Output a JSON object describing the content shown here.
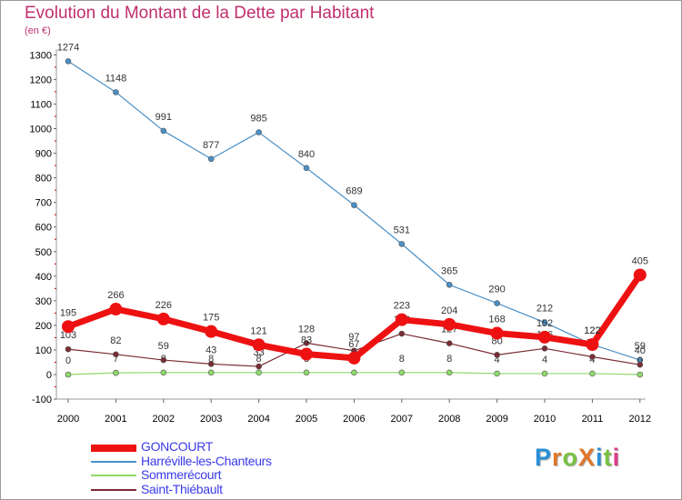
{
  "title": "Evolution du Montant de la Dette par Habitant",
  "unit": "(en €)",
  "logo": "ProXiti",
  "chart_data": {
    "type": "line",
    "title": "Evolution du Montant de la Dette par Habitant",
    "ylabel": "(en €)",
    "xlabel": "",
    "x": [
      "2000",
      "2001",
      "2002",
      "2003",
      "2004",
      "2005",
      "2006",
      "2007",
      "2008",
      "2009",
      "2010",
      "2011",
      "2012"
    ],
    "ylim": [
      -100,
      1300
    ],
    "yticks": [
      -100,
      0,
      100,
      200,
      300,
      400,
      500,
      600,
      700,
      800,
      900,
      1000,
      1100,
      1200,
      1300
    ],
    "grid": false,
    "legend": "bottom-left",
    "series": [
      {
        "name": "Harréville-les-Chanteurs",
        "color": "#4a8fc6",
        "values": [
          1274,
          1148,
          991,
          877,
          985,
          840,
          689,
          531,
          365,
          290,
          212,
          122,
          59
        ]
      },
      {
        "name": "Sommerécourt",
        "color": "#8ed96b",
        "values": [
          0,
          7,
          8,
          8,
          8,
          8,
          8,
          8,
          8,
          4,
          4,
          4,
          0
        ]
      },
      {
        "name": "Saint-Thiébault",
        "color": "#7a2c34",
        "values": [
          103,
          82,
          59,
          43,
          33,
          128,
          97,
          166,
          127,
          80,
          106,
          72,
          40
        ]
      },
      {
        "name": "GONCOURT",
        "color": "#ee1111",
        "values": [
          195,
          266,
          226,
          175,
          121,
          83,
          67,
          223,
          204,
          168,
          152,
          122,
          405
        ]
      }
    ]
  }
}
